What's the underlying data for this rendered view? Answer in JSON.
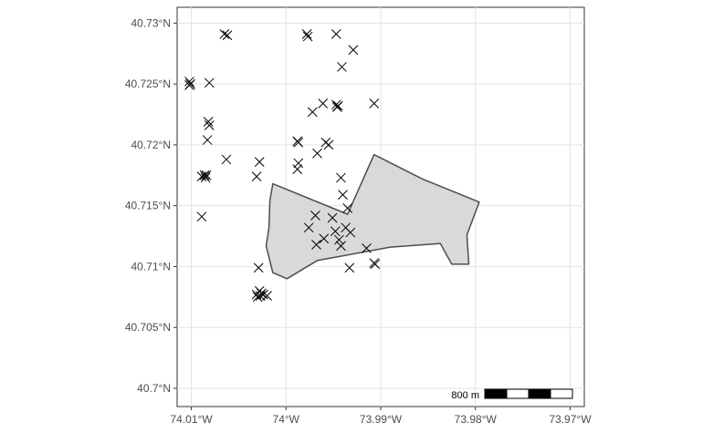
{
  "chart_data": {
    "type": "scatter",
    "title": "",
    "xlabel": "",
    "ylabel": "",
    "xlim": [
      -74.0115,
      -73.9685
    ],
    "ylim": [
      40.6985,
      40.7313
    ],
    "x_ticks": [
      {
        "value": -74.01,
        "label": "74.01°W"
      },
      {
        "value": -74.0,
        "label": "74°W"
      },
      {
        "value": -73.99,
        "label": "73.99°W"
      },
      {
        "value": -73.98,
        "label": "73.98°W"
      },
      {
        "value": -73.97,
        "label": "73.97°W"
      }
    ],
    "y_ticks": [
      {
        "value": 40.73,
        "label": "40.73°N"
      },
      {
        "value": 40.725,
        "label": "40.725°N"
      },
      {
        "value": 40.72,
        "label": "40.72°N"
      },
      {
        "value": 40.715,
        "label": "40.715°N"
      },
      {
        "value": 40.71,
        "label": "40.71°N"
      },
      {
        "value": 40.705,
        "label": "40.705°N"
      },
      {
        "value": 40.7,
        "label": "40.7°N"
      }
    ],
    "grid": true,
    "marker": "x",
    "points": [
      [
        -74.0102,
        40.7252
      ],
      [
        -74.0101,
        40.725
      ],
      [
        -74.0102,
        40.7249
      ],
      [
        -74.0081,
        40.7251
      ],
      [
        -74.0065,
        40.7291
      ],
      [
        -74.0062,
        40.729
      ],
      [
        -74.0082,
        40.7219
      ],
      [
        -74.0081,
        40.7216
      ],
      [
        -74.0083,
        40.7204
      ],
      [
        -74.0063,
        40.7188
      ],
      [
        -74.0089,
        40.7174
      ],
      [
        -74.0086,
        40.7175
      ],
      [
        -74.0085,
        40.7173
      ],
      [
        -74.0084,
        40.7175
      ],
      [
        -74.0089,
        40.7141
      ],
      [
        -74.0028,
        40.7186
      ],
      [
        -74.0031,
        40.7174
      ],
      [
        -73.9978,
        40.7291
      ],
      [
        -73.9977,
        40.7289
      ],
      [
        -73.9947,
        40.7291
      ],
      [
        -73.9929,
        40.7278
      ],
      [
        -73.9941,
        40.7264
      ],
      [
        -73.9961,
        40.7234
      ],
      [
        -73.9947,
        40.7233
      ],
      [
        -73.9945,
        40.7232
      ],
      [
        -73.9946,
        40.7231
      ],
      [
        -73.9972,
        40.7227
      ],
      [
        -73.9988,
        40.7203
      ],
      [
        -73.9987,
        40.7202
      ],
      [
        -73.9958,
        40.7202
      ],
      [
        -73.9955,
        40.72
      ],
      [
        -73.9967,
        40.7193
      ],
      [
        -73.9987,
        40.7185
      ],
      [
        -73.9988,
        40.718
      ],
      [
        -73.9942,
        40.7173
      ],
      [
        -73.994,
        40.7159
      ],
      [
        -73.9935,
        40.7148
      ],
      [
        -73.9907,
        40.7234
      ],
      [
        -73.9976,
        40.7132
      ],
      [
        -73.9969,
        40.7142
      ],
      [
        -73.9968,
        40.7118
      ],
      [
        -73.996,
        40.7123
      ],
      [
        -73.9951,
        40.714
      ],
      [
        -73.9948,
        40.7129
      ],
      [
        -73.9944,
        40.7122
      ],
      [
        -73.9942,
        40.7117
      ],
      [
        -73.9937,
        40.7132
      ],
      [
        -73.9932,
        40.7128
      ],
      [
        -73.9915,
        40.7115
      ],
      [
        -73.9907,
        40.7103
      ],
      [
        -73.9906,
        40.7102
      ],
      [
        -73.9933,
        40.7099
      ],
      [
        -74.0029,
        40.7099
      ],
      [
        -74.0028,
        40.708
      ],
      [
        -74.0031,
        40.7077
      ],
      [
        -74.0027,
        40.7076
      ],
      [
        -74.003,
        40.7075
      ],
      [
        -74.0024,
        40.7077
      ],
      [
        -74.002,
        40.7076
      ],
      [
        -74.0026,
        40.7078
      ]
    ],
    "region": [
      [
        -74.0014,
        40.7168
      ],
      [
        -73.9935,
        40.7143
      ],
      [
        -73.9907,
        40.7192
      ],
      [
        -73.9856,
        40.7172
      ],
      [
        -73.9796,
        40.7153
      ],
      [
        -73.9809,
        40.7126
      ],
      [
        -73.9807,
        40.7102
      ],
      [
        -73.9825,
        40.7102
      ],
      [
        -73.9837,
        40.7119
      ],
      [
        -73.989,
        40.7116
      ],
      [
        -73.9967,
        40.7105
      ],
      [
        -73.9999,
        40.709
      ],
      [
        -74.0014,
        40.7095
      ],
      [
        -74.0021,
        40.7117
      ],
      [
        -74.0018,
        40.7132
      ],
      [
        -74.0017,
        40.7154
      ]
    ],
    "scale_bar": {
      "label": "800 m",
      "segments": 4
    }
  }
}
